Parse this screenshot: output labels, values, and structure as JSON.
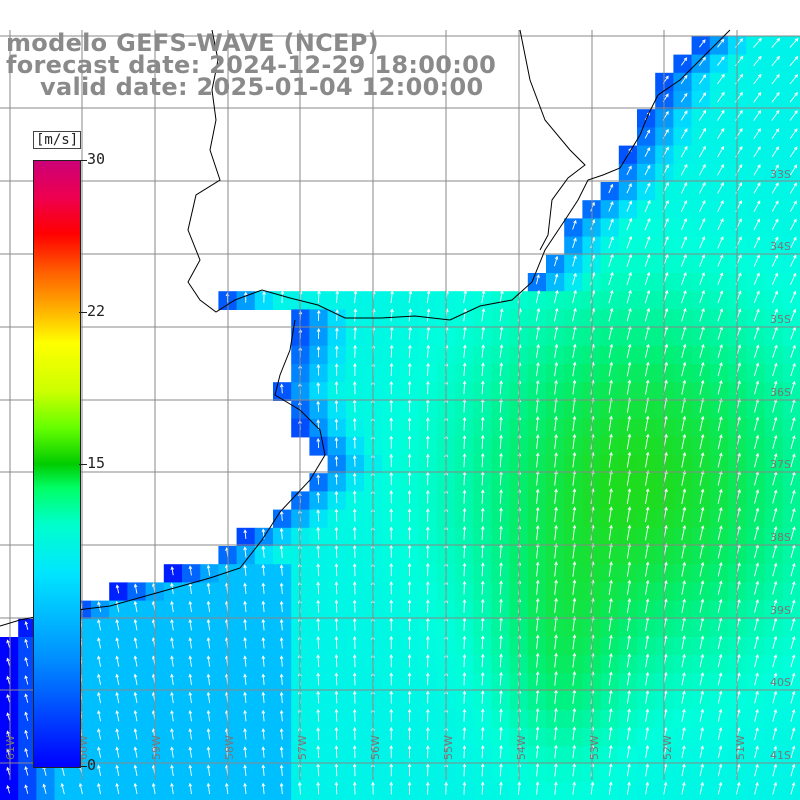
{
  "title": {
    "line1": "modelo GEFS-WAVE (NCEP)",
    "line2": "forecast date: 2024-12-29 18:00:00",
    "line3": "valid date: 2025-01-04 12:00:00"
  },
  "colorbar": {
    "units": "[m/s]",
    "ticks": [
      "30",
      "22",
      "15",
      "0"
    ],
    "colors": [
      "#0000ff",
      "#00e6ff",
      "#00cc00",
      "#ffff00",
      "#ff0000",
      "#cc0077"
    ]
  },
  "longitude_labels": [
    "61W",
    "60W",
    "59W",
    "58W",
    "57W",
    "56W",
    "55W",
    "54W",
    "53W",
    "52W",
    "51W"
  ],
  "latitude_labels": [
    "33S",
    "34S",
    "35S",
    "36S",
    "37S",
    "38S",
    "39S",
    "40S",
    "41S"
  ],
  "map_colors": {
    "land": "#ffffff",
    "grid": "#888888",
    "coast": "#000000",
    "arrows": "#ffffff"
  }
}
